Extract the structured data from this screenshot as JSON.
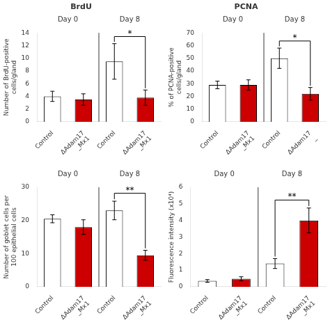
{
  "chart_data": [
    {
      "type": "bar",
      "title": "BrdU",
      "categories": [
        "Control",
        "ΔAdam17\n_Mx1",
        "Control",
        "ΔAdam17\n_Mx1"
      ],
      "values": [
        4.0,
        3.5,
        9.5,
        3.8
      ],
      "errors": [
        0.8,
        0.9,
        2.8,
        1.2
      ],
      "colors": [
        "white",
        "#cc0000",
        "white",
        "#cc0000"
      ],
      "ylabel": "Number of BrdU-positive\ncells/gland",
      "ylim": [
        0,
        14
      ],
      "yticks": [
        0,
        2,
        4,
        6,
        8,
        10,
        12,
        14
      ],
      "grid": false,
      "annotations": [
        {
          "text": "Day 0",
          "from": 0,
          "to": 1
        },
        {
          "text": "Day 8",
          "from": 2,
          "to": 3
        }
      ],
      "significance": [
        {
          "text": "*",
          "from": 2,
          "to": 3
        }
      ]
    },
    {
      "type": "bar",
      "title": "PCNA",
      "categories": [
        "Control",
        "ΔAdam17\n_Mx1",
        "Control",
        "ΔAdam17\n_"
      ],
      "values": [
        29,
        29,
        50,
        22
      ],
      "errors": [
        3,
        4,
        8,
        5
      ],
      "colors": [
        "white",
        "#cc0000",
        "white",
        "#cc0000"
      ],
      "ylabel": "% of PCNA-positive\ncells/gland",
      "ylim": [
        0,
        70
      ],
      "yticks": [
        0,
        10,
        20,
        30,
        40,
        50,
        60,
        70
      ],
      "grid": false,
      "annotations": [
        {
          "text": "Day 0",
          "from": 0,
          "to": 1
        },
        {
          "text": "Day 8",
          "from": 2,
          "to": 3
        }
      ],
      "significance": [
        {
          "text": "*",
          "from": 2,
          "to": 3
        }
      ]
    },
    {
      "type": "bar",
      "categories": [
        "Control",
        "ΔAdam17\n_Mx1",
        "Control",
        "ΔAdam17\n_Mx1"
      ],
      "values": [
        20.5,
        18.0,
        23.0,
        9.5
      ],
      "errors": [
        1.2,
        2.2,
        2.8,
        1.5
      ],
      "colors": [
        "white",
        "#cc0000",
        "white",
        "#cc0000"
      ],
      "ylabel": "Number of goblet cells per\n100 epithelial cells",
      "ylim": [
        0,
        30
      ],
      "yticks": [
        0,
        10,
        20,
        30
      ],
      "grid": false,
      "annotations": [
        {
          "text": "Day 0",
          "from": 0,
          "to": 1
        },
        {
          "text": "Day 8",
          "from": 2,
          "to": 3
        }
      ],
      "significance": [
        {
          "text": "**",
          "from": 2,
          "to": 3
        }
      ]
    },
    {
      "type": "bar",
      "categories": [
        "Control",
        "ΔAdam17\n_Mx1",
        "Control",
        "ΔAdam17\n_Mx1"
      ],
      "values": [
        0.35,
        0.48,
        1.4,
        4.0
      ],
      "errors": [
        0.08,
        0.12,
        0.3,
        0.75
      ],
      "colors": [
        "white",
        "#cc0000",
        "white",
        "#cc0000"
      ],
      "ylabel": "Fluorescence intensity (x10⁴)",
      "ylim": [
        0,
        6
      ],
      "yticks": [
        0,
        1,
        2,
        3,
        4,
        5,
        6
      ],
      "grid": false,
      "annotations": [
        {
          "text": "Day 0",
          "from": 0,
          "to": 1
        },
        {
          "text": "Day 8",
          "from": 2,
          "to": 3
        }
      ],
      "significance": [
        {
          "text": "**",
          "from": 2,
          "to": 3
        }
      ]
    }
  ]
}
